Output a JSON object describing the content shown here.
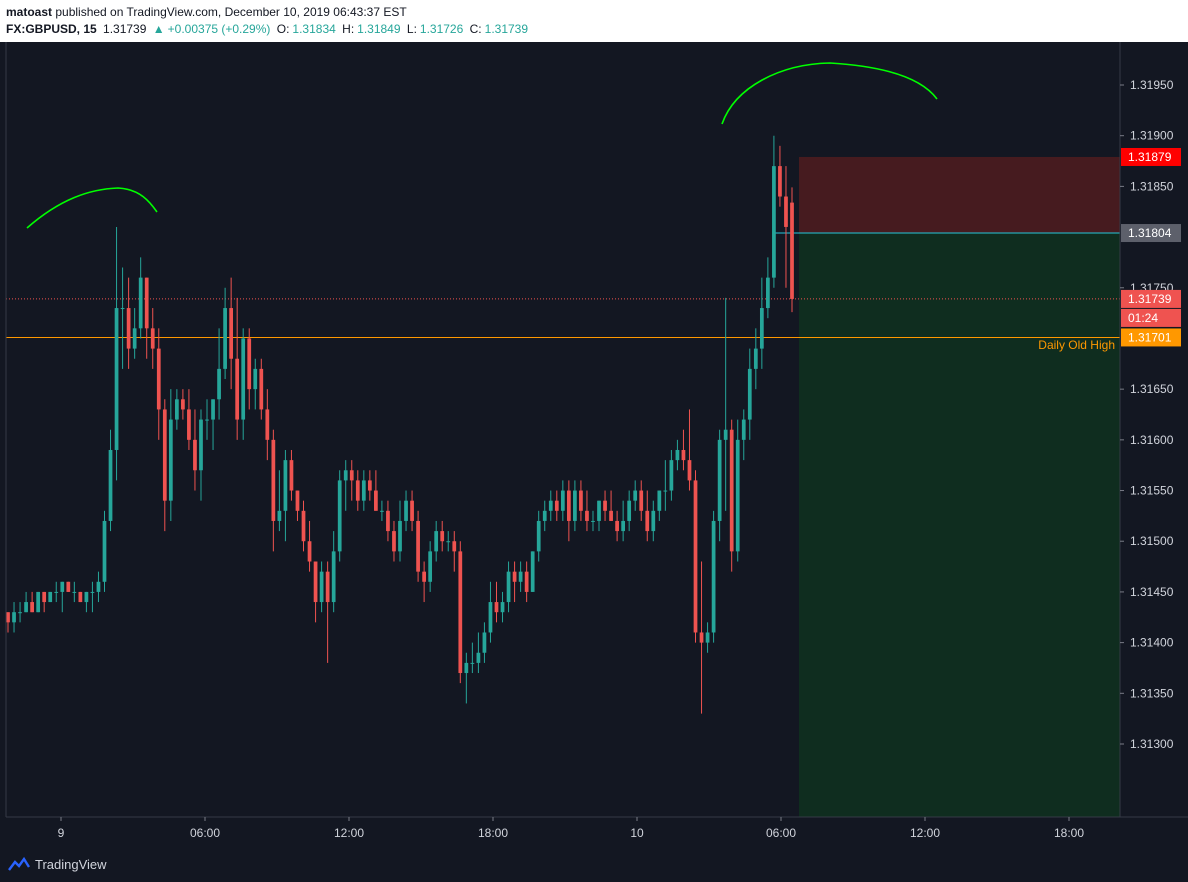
{
  "header": {
    "publisher": "matoast",
    "published_text": " published on TradingView.com, December 10, 2019 06:43:37 EST",
    "symbol": "FX:GBPUSD, 15",
    "last": "1.31739",
    "change": "+0.00375 (+0.29%)",
    "o_label": "O:",
    "o_value": "1.31834",
    "h_label": "H:",
    "h_value": "1.31849",
    "l_label": "L:",
    "l_value": "1.31726",
    "c_label": "C:",
    "c_value": "1.31739"
  },
  "footer": {
    "brand": "TradingView"
  },
  "colors": {
    "background": "#131722",
    "up": "#26a69a",
    "down": "#ef5350",
    "curve": "#00ff00",
    "level_orange": "#ff9800",
    "stop_zone": "#461b1f",
    "target_zone": "#0f2d1f",
    "entry_line": "#26c6da"
  },
  "chart_data": {
    "type": "candlestick",
    "symbol": "FX:GBPUSD",
    "interval": "15",
    "y_ticks": [
      "1.31950",
      "1.31900",
      "1.31850",
      "1.31750",
      "1.31650",
      "1.31600",
      "1.31550",
      "1.31500",
      "1.31450",
      "1.31400",
      "1.31350",
      "1.31300"
    ],
    "x_ticks": [
      "9",
      "06:00",
      "12:00",
      "18:00",
      "10",
      "06:00",
      "12:00",
      "18:00"
    ],
    "ylim": [
      1.3128,
      1.3198
    ],
    "price_tags": [
      {
        "label": "1.31879",
        "value": 1.31879,
        "color": "#ff0000"
      },
      {
        "label": "1.31804",
        "value": 1.31804,
        "color": "#5d606b"
      },
      {
        "label": "1.31739",
        "value": 1.31739,
        "color": "#ef5350"
      },
      {
        "label": "01:24",
        "value": null,
        "color": "#ef5350"
      },
      {
        "label": "1.31701",
        "value": 1.31701,
        "color": "#ff9800"
      }
    ],
    "annotations": [
      {
        "text": "Daily Old High",
        "value": 1.31701,
        "color": "#ff9800"
      }
    ],
    "position": {
      "type": "short",
      "stop": 1.31879,
      "entry": 1.31804,
      "target": 1.3128
    },
    "candles": [
      [
        1.3143,
        1.3143,
        1.3141,
        1.3142
      ],
      [
        1.3142,
        1.3144,
        1.3141,
        1.3143
      ],
      [
        1.3143,
        1.3144,
        1.3142,
        1.3143
      ],
      [
        1.3143,
        1.3145,
        1.3143,
        1.3144
      ],
      [
        1.3144,
        1.3145,
        1.3143,
        1.3143
      ],
      [
        1.3143,
        1.3145,
        1.3143,
        1.3145
      ],
      [
        1.3145,
        1.3145,
        1.3143,
        1.3144
      ],
      [
        1.3144,
        1.3145,
        1.3144,
        1.3145
      ],
      [
        1.3145,
        1.3146,
        1.3144,
        1.3145
      ],
      [
        1.3145,
        1.3146,
        1.3143,
        1.3146
      ],
      [
        1.3146,
        1.3146,
        1.3145,
        1.3145
      ],
      [
        1.3145,
        1.3146,
        1.3144,
        1.3145
      ],
      [
        1.3145,
        1.3145,
        1.3144,
        1.3144
      ],
      [
        1.3144,
        1.3145,
        1.3143,
        1.3145
      ],
      [
        1.3145,
        1.3146,
        1.3143,
        1.3145
      ],
      [
        1.3145,
        1.3147,
        1.3144,
        1.3146
      ],
      [
        1.3146,
        1.3153,
        1.3145,
        1.3152
      ],
      [
        1.3152,
        1.3161,
        1.3151,
        1.3159
      ],
      [
        1.3159,
        1.3181,
        1.3156,
        1.3173
      ],
      [
        1.3173,
        1.3177,
        1.3167,
        1.3173
      ],
      [
        1.3173,
        1.3176,
        1.3167,
        1.3169
      ],
      [
        1.3169,
        1.3173,
        1.3168,
        1.3171
      ],
      [
        1.3171,
        1.3178,
        1.317,
        1.3176
      ],
      [
        1.3176,
        1.3176,
        1.3168,
        1.3171
      ],
      [
        1.3171,
        1.3173,
        1.3167,
        1.3169
      ],
      [
        1.3169,
        1.3171,
        1.316,
        1.3163
      ],
      [
        1.3163,
        1.3164,
        1.3151,
        1.3154
      ],
      [
        1.3154,
        1.3165,
        1.3152,
        1.3162
      ],
      [
        1.3162,
        1.3165,
        1.3161,
        1.3164
      ],
      [
        1.3164,
        1.3165,
        1.3162,
        1.3163
      ],
      [
        1.3163,
        1.3165,
        1.3159,
        1.316
      ],
      [
        1.316,
        1.3163,
        1.3155,
        1.3157
      ],
      [
        1.3157,
        1.3163,
        1.3154,
        1.3162
      ],
      [
        1.3162,
        1.3164,
        1.316,
        1.3162
      ],
      [
        1.3162,
        1.3164,
        1.3159,
        1.3164
      ],
      [
        1.3164,
        1.3171,
        1.3162,
        1.3167
      ],
      [
        1.3167,
        1.3175,
        1.3166,
        1.3173
      ],
      [
        1.3173,
        1.3176,
        1.3165,
        1.3168
      ],
      [
        1.3168,
        1.3174,
        1.316,
        1.3162
      ],
      [
        1.3162,
        1.3171,
        1.316,
        1.317
      ],
      [
        1.317,
        1.3171,
        1.3163,
        1.3165
      ],
      [
        1.3165,
        1.3168,
        1.3163,
        1.3167
      ],
      [
        1.3167,
        1.3168,
        1.3162,
        1.3163
      ],
      [
        1.3163,
        1.3165,
        1.3158,
        1.316
      ],
      [
        1.316,
        1.3161,
        1.3149,
        1.3152
      ],
      [
        1.3152,
        1.3157,
        1.3151,
        1.3153
      ],
      [
        1.3153,
        1.3159,
        1.315,
        1.3158
      ],
      [
        1.3158,
        1.3159,
        1.3154,
        1.3155
      ],
      [
        1.3155,
        1.3155,
        1.3152,
        1.3153
      ],
      [
        1.3153,
        1.3154,
        1.3149,
        1.315
      ],
      [
        1.315,
        1.3152,
        1.3147,
        1.3148
      ],
      [
        1.3148,
        1.3148,
        1.3142,
        1.3144
      ],
      [
        1.3144,
        1.3148,
        1.3143,
        1.3147
      ],
      [
        1.3147,
        1.3148,
        1.3138,
        1.3144
      ],
      [
        1.3144,
        1.3151,
        1.3143,
        1.3149
      ],
      [
        1.3149,
        1.3157,
        1.3148,
        1.3156
      ],
      [
        1.3156,
        1.3158,
        1.3153,
        1.3157
      ],
      [
        1.3157,
        1.3158,
        1.3154,
        1.3156
      ],
      [
        1.3156,
        1.3157,
        1.3153,
        1.3154
      ],
      [
        1.3154,
        1.3157,
        1.3153,
        1.3156
      ],
      [
        1.3156,
        1.3157,
        1.3154,
        1.3155
      ],
      [
        1.3155,
        1.3157,
        1.3153,
        1.3153
      ],
      [
        1.3153,
        1.3154,
        1.3152,
        1.3153
      ],
      [
        1.3153,
        1.3154,
        1.315,
        1.3151
      ],
      [
        1.3151,
        1.3152,
        1.3148,
        1.3149
      ],
      [
        1.3149,
        1.3154,
        1.3148,
        1.3152
      ],
      [
        1.3152,
        1.3155,
        1.3151,
        1.3154
      ],
      [
        1.3154,
        1.3155,
        1.3151,
        1.3152
      ],
      [
        1.3152,
        1.3153,
        1.3146,
        1.3147
      ],
      [
        1.3147,
        1.3148,
        1.3144,
        1.3146
      ],
      [
        1.3146,
        1.315,
        1.3145,
        1.3149
      ],
      [
        1.3149,
        1.3152,
        1.3148,
        1.3151
      ],
      [
        1.3151,
        1.3152,
        1.3149,
        1.315
      ],
      [
        1.315,
        1.3151,
        1.3149,
        1.315
      ],
      [
        1.315,
        1.3151,
        1.3147,
        1.3149
      ],
      [
        1.3149,
        1.315,
        1.3136,
        1.3137
      ],
      [
        1.3137,
        1.3139,
        1.3134,
        1.3138
      ],
      [
        1.3138,
        1.314,
        1.3137,
        1.3138
      ],
      [
        1.3138,
        1.3141,
        1.3137,
        1.3139
      ],
      [
        1.3139,
        1.3142,
        1.3138,
        1.3141
      ],
      [
        1.3141,
        1.3146,
        1.314,
        1.3144
      ],
      [
        1.3144,
        1.3146,
        1.3142,
        1.3143
      ],
      [
        1.3143,
        1.3145,
        1.3142,
        1.3144
      ],
      [
        1.3144,
        1.3148,
        1.3143,
        1.3147
      ],
      [
        1.3147,
        1.3148,
        1.3144,
        1.3146
      ],
      [
        1.3146,
        1.3148,
        1.3145,
        1.3147
      ],
      [
        1.3147,
        1.3148,
        1.3144,
        1.3145
      ],
      [
        1.3145,
        1.3149,
        1.3145,
        1.3149
      ],
      [
        1.3149,
        1.3153,
        1.3148,
        1.3152
      ],
      [
        1.3152,
        1.3154,
        1.3151,
        1.3153
      ],
      [
        1.3153,
        1.3155,
        1.3152,
        1.3154
      ],
      [
        1.3154,
        1.3155,
        1.3152,
        1.3153
      ],
      [
        1.3153,
        1.3156,
        1.3152,
        1.3155
      ],
      [
        1.3155,
        1.3156,
        1.315,
        1.3152
      ],
      [
        1.3152,
        1.3156,
        1.3151,
        1.3155
      ],
      [
        1.3155,
        1.3156,
        1.3152,
        1.3153
      ],
      [
        1.3153,
        1.3155,
        1.3151,
        1.3152
      ],
      [
        1.3152,
        1.3153,
        1.3151,
        1.3152
      ],
      [
        1.3152,
        1.3154,
        1.3151,
        1.3154
      ],
      [
        1.3154,
        1.3155,
        1.3152,
        1.3153
      ],
      [
        1.3153,
        1.3155,
        1.3152,
        1.3152
      ],
      [
        1.3152,
        1.3153,
        1.315,
        1.3151
      ],
      [
        1.3151,
        1.3154,
        1.315,
        1.3152
      ],
      [
        1.3152,
        1.3155,
        1.3151,
        1.3154
      ],
      [
        1.3154,
        1.3156,
        1.3153,
        1.3155
      ],
      [
        1.3155,
        1.3156,
        1.3152,
        1.3153
      ],
      [
        1.3153,
        1.3155,
        1.315,
        1.3151
      ],
      [
        1.3151,
        1.3154,
        1.315,
        1.3153
      ],
      [
        1.3153,
        1.3155,
        1.3152,
        1.3155
      ],
      [
        1.3155,
        1.3158,
        1.3153,
        1.3155
      ],
      [
        1.3155,
        1.3159,
        1.3154,
        1.3158
      ],
      [
        1.3158,
        1.316,
        1.3157,
        1.3159
      ],
      [
        1.3159,
        1.3161,
        1.3157,
        1.3158
      ],
      [
        1.3158,
        1.3163,
        1.3155,
        1.3156
      ],
      [
        1.3156,
        1.3157,
        1.314,
        1.3141
      ],
      [
        1.3141,
        1.3148,
        1.3133,
        1.314
      ],
      [
        1.314,
        1.3142,
        1.3139,
        1.3141
      ],
      [
        1.3141,
        1.3153,
        1.314,
        1.3152
      ],
      [
        1.3152,
        1.3161,
        1.315,
        1.316
      ],
      [
        1.316,
        1.3174,
        1.3153,
        1.3161
      ],
      [
        1.3161,
        1.3162,
        1.3147,
        1.3149
      ],
      [
        1.3149,
        1.3162,
        1.3148,
        1.316
      ],
      [
        1.316,
        1.3163,
        1.3158,
        1.3162
      ],
      [
        1.3162,
        1.3169,
        1.316,
        1.3167
      ],
      [
        1.3167,
        1.3171,
        1.3165,
        1.3169
      ],
      [
        1.3169,
        1.3176,
        1.3167,
        1.3173
      ],
      [
        1.3173,
        1.3178,
        1.3172,
        1.3176
      ],
      [
        1.3176,
        1.319,
        1.3175,
        1.3187
      ],
      [
        1.3187,
        1.3189,
        1.3183,
        1.3184
      ],
      [
        1.3184,
        1.3187,
        1.3175,
        1.3181
      ],
      [
        1.31834,
        1.31849,
        1.31726,
        1.31739
      ]
    ]
  }
}
